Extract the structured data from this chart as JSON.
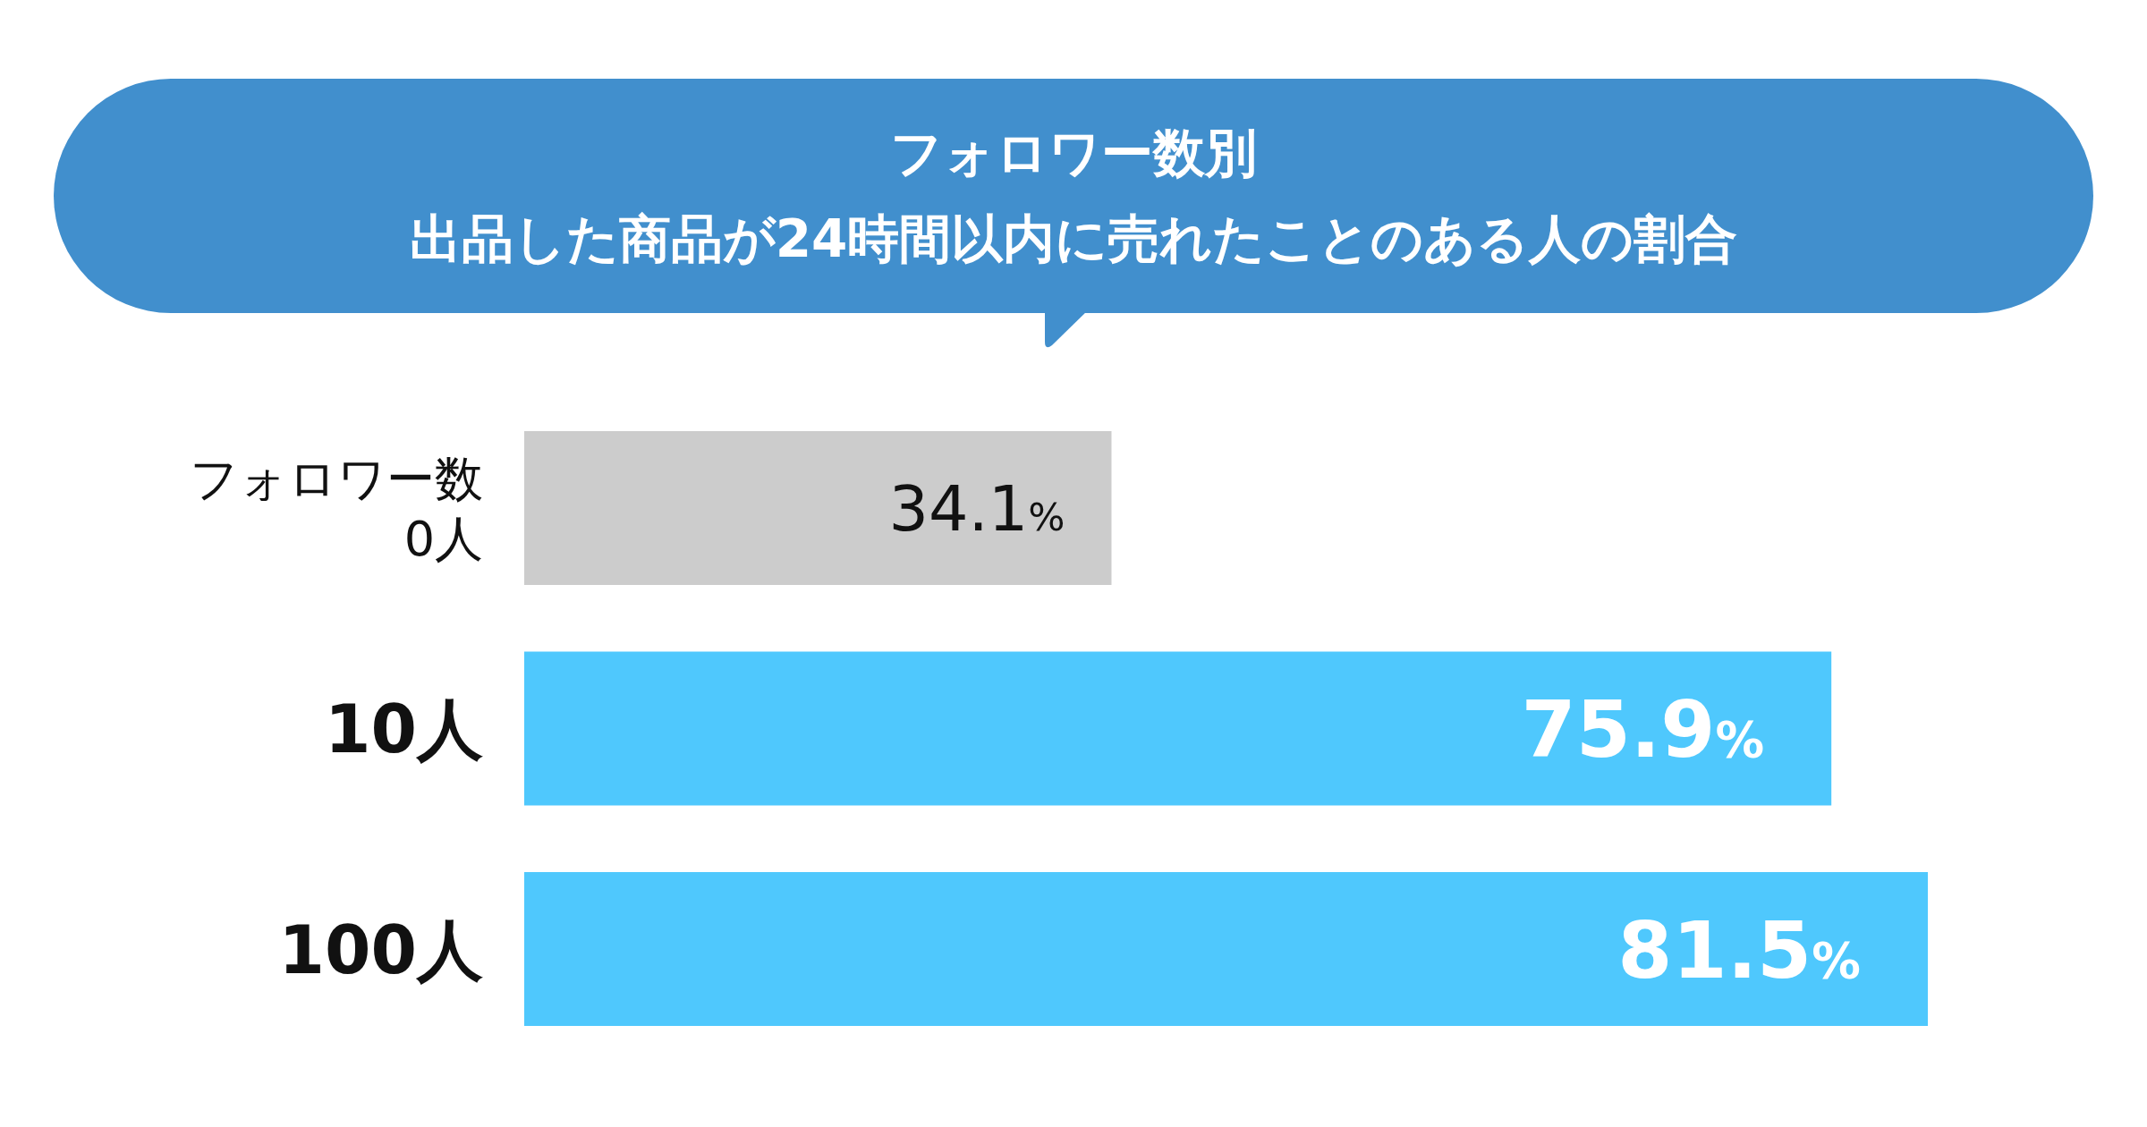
{
  "chart_data": {
    "type": "bar",
    "orientation": "horizontal",
    "title": "フォロワー数別",
    "subtitle": "出品した商品が24時間以内に売れたことのある人の割合",
    "categories": [
      "フォロワー数\n0人",
      "10人",
      "100人"
    ],
    "values": [
      34.1,
      75.9,
      81.5
    ],
    "colors": [
      "#cccccc",
      "#4fc8fd",
      "#4fc8fd"
    ],
    "value_labels": [
      "34.1%",
      "75.9%",
      "81.5%"
    ]
  }
}
